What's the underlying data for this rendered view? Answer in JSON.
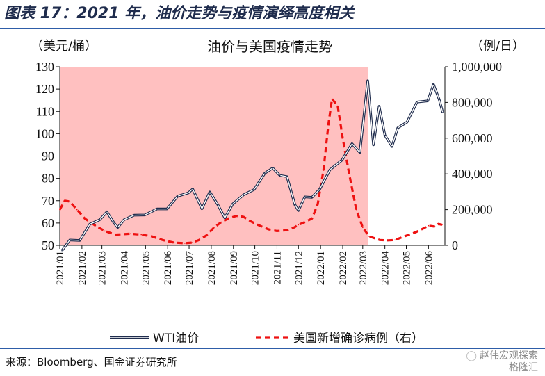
{
  "figure_title": "图表 17：2021 年，油价走势与疫情演绎高度相关",
  "source": "来源：Bloomberg、国金证券研究所",
  "watermark": "赵伟宏观探索",
  "watermark2": "格隆汇",
  "chart_data": {
    "type": "line",
    "title": "油价与美国疫情走势",
    "left_unit": "（美元/桶）",
    "right_unit": "（例/日）",
    "ylim_left": [
      50,
      130
    ],
    "ylim_right": [
      0,
      1000000
    ],
    "yticks_left": [
      "130",
      "120",
      "110",
      "100",
      "90",
      "80",
      "70",
      "60",
      "50"
    ],
    "yticks_right": [
      "1,000,000",
      "800,000",
      "600,000",
      "400,000",
      "200,000",
      "0"
    ],
    "x_labels": [
      "2021/01",
      "2021/02",
      "2021/03",
      "2021/04",
      "2021/05",
      "2021/06",
      "2021/07",
      "2021/08",
      "2021/09",
      "2021/10",
      "2021/11",
      "2021/12",
      "2022/01",
      "2022/02",
      "2022/03",
      "2022/04",
      "2022/05",
      "2022/06"
    ],
    "shaded_region": {
      "from": "2021/01",
      "to": "2022/03 (early)",
      "color": "#ffc0c0"
    },
    "series": [
      {
        "name": "WTI油价",
        "axis": "left",
        "style": "double-line",
        "color": "#1f2c4d",
        "dates": [
          "2021/01/04",
          "2021/01/15",
          "2021/01/29",
          "2021/02/12",
          "2021/02/26",
          "2021/03/08",
          "2021/03/18",
          "2021/03/23",
          "2021/04/01",
          "2021/04/15",
          "2021/04/30",
          "2021/05/17",
          "2021/05/31",
          "2021/06/15",
          "2021/06/30",
          "2021/07/06",
          "2021/07/19",
          "2021/07/30",
          "2021/08/10",
          "2021/08/20",
          "2021/08/31",
          "2021/09/15",
          "2021/09/30",
          "2021/10/15",
          "2021/10/26",
          "2021/11/05",
          "2021/11/15",
          "2021/11/26",
          "2021/12/01",
          "2021/12/10",
          "2021/12/20",
          "2021/12/31",
          "2022/01/14",
          "2022/01/31",
          "2022/02/14",
          "2022/02/25",
          "2022/03/08",
          "2022/03/16",
          "2022/03/24",
          "2022/04/01",
          "2022/04/11",
          "2022/04/19",
          "2022/05/02",
          "2022/05/16",
          "2022/05/31",
          "2022/06/08",
          "2022/06/16",
          "2022/06/21"
        ],
        "values": [
          47.6,
          52.4,
          52.2,
          59.5,
          61.5,
          65.0,
          60.0,
          58.0,
          61.5,
          63.5,
          63.6,
          66.3,
          66.3,
          72.0,
          73.5,
          75.2,
          66.4,
          73.9,
          68.3,
          62.3,
          68.5,
          72.6,
          75.0,
          82.3,
          84.6,
          81.3,
          80.8,
          68.2,
          65.6,
          71.7,
          71.5,
          75.2,
          83.8,
          88.2,
          95.5,
          91.6,
          123.7,
          95.0,
          112.3,
          99.3,
          94.3,
          102.6,
          105.2,
          114.2,
          114.7,
          122.1,
          115.3,
          109.5
        ]
      },
      {
        "name": "美国新增确诊病例（右）",
        "axis": "right",
        "style": "dashed",
        "color": "#ee1111",
        "dates": [
          "2021/01/01",
          "2021/01/08",
          "2021/01/15",
          "2021/01/25",
          "2021/02/05",
          "2021/02/20",
          "2021/03/05",
          "2021/03/20",
          "2021/04/10",
          "2021/04/25",
          "2021/05/10",
          "2021/05/25",
          "2021/06/10",
          "2021/06/25",
          "2021/07/05",
          "2021/07/15",
          "2021/07/25",
          "2021/08/05",
          "2021/08/15",
          "2021/08/25",
          "2021/09/05",
          "2021/09/15",
          "2021/09/25",
          "2021/10/05",
          "2021/10/20",
          "2021/11/01",
          "2021/11/15",
          "2021/11/25",
          "2021/12/01",
          "2021/12/10",
          "2021/12/20",
          "2021/12/28",
          "2022/01/05",
          "2022/01/12",
          "2022/01/17",
          "2022/01/25",
          "2022/02/01",
          "2022/02/10",
          "2022/02/20",
          "2022/03/01",
          "2022/03/10",
          "2022/03/25",
          "2022/04/05",
          "2022/04/15",
          "2022/04/25",
          "2022/05/05",
          "2022/05/15",
          "2022/05/25",
          "2022/06/01",
          "2022/06/10",
          "2022/06/15",
          "2022/06/20"
        ],
        "values": [
          200000,
          250000,
          245000,
          200000,
          150000,
          110000,
          80000,
          60000,
          65000,
          60000,
          50000,
          30000,
          15000,
          12000,
          15000,
          30000,
          55000,
          100000,
          130000,
          150000,
          165000,
          160000,
          135000,
          115000,
          90000,
          80000,
          85000,
          100000,
          115000,
          130000,
          150000,
          230000,
          420000,
          680000,
          820000,
          780000,
          600000,
          400000,
          200000,
          100000,
          50000,
          30000,
          28000,
          30000,
          45000,
          60000,
          75000,
          95000,
          110000,
          105000,
          120000,
          115000
        ]
      }
    ],
    "legend": [
      "WTI油价",
      "美国新增确诊病例（右）"
    ],
    "legend_placement": "bottom",
    "grid": false
  }
}
